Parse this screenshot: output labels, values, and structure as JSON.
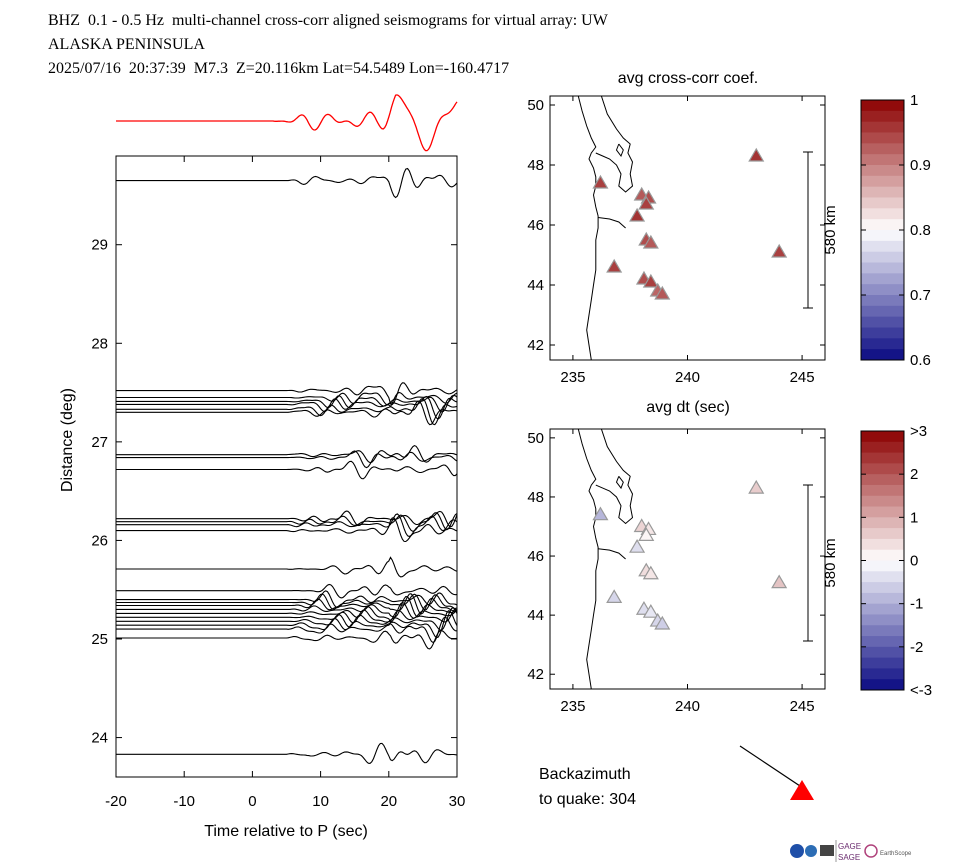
{
  "header": {
    "line1": "BHZ  0.1 - 0.5 Hz  multi-channel cross-corr aligned seismograms for virtual array: UW",
    "line2": "ALASKA PENINSULA",
    "line3": "2025/07/16  20:37:39  M7.3  Z=20.116km Lat=54.5489 Lon=-160.4717"
  },
  "chart_data": [
    {
      "type": "line",
      "id": "seismograms",
      "xlabel": "Time relative to P (sec)",
      "ylabel": "Distance (deg)",
      "xlim": [
        -20,
        30
      ],
      "ylim": [
        23.6,
        29.9
      ],
      "xticks": [
        "-20",
        "-10",
        "0",
        "10",
        "20",
        "30"
      ],
      "yticks": [
        "24",
        "25",
        "26",
        "27",
        "28",
        "29"
      ],
      "stack_color": "#ff0000",
      "trace_distances": [
        29.65,
        27.52,
        27.45,
        27.41,
        27.38,
        27.33,
        27.3,
        26.87,
        26.84,
        26.72,
        26.22,
        26.19,
        26.16,
        26.1,
        25.71,
        25.49,
        25.4,
        25.37,
        25.34,
        25.3,
        25.26,
        25.22,
        25.18,
        25.14,
        25.1,
        25.01,
        23.83
      ]
    },
    {
      "type": "scatter",
      "id": "map-coef",
      "title": "avg cross-corr coef.",
      "xlabel": "avg dt (sec)",
      "xlim": [
        234,
        246
      ],
      "ylim": [
        41.5,
        50.3
      ],
      "xticks": [
        "235",
        "240",
        "245"
      ],
      "yticks": [
        "42",
        "44",
        "46",
        "48",
        "50"
      ],
      "scale_label": "580 km",
      "colorbar": {
        "ticks": [
          "1",
          "0.9",
          "0.8",
          "0.7",
          "0.6"
        ]
      },
      "stations": [
        {
          "lon": 236.2,
          "lat": 47.4,
          "value": 0.95
        },
        {
          "lon": 243.0,
          "lat": 48.3,
          "value": 0.96
        },
        {
          "lon": 244.0,
          "lat": 45.1,
          "value": 0.95
        },
        {
          "lon": 238.0,
          "lat": 47.0,
          "value": 0.93
        },
        {
          "lon": 238.3,
          "lat": 46.9,
          "value": 0.94
        },
        {
          "lon": 238.2,
          "lat": 46.7,
          "value": 0.95
        },
        {
          "lon": 237.8,
          "lat": 46.3,
          "value": 0.96
        },
        {
          "lon": 238.2,
          "lat": 45.5,
          "value": 0.94
        },
        {
          "lon": 238.4,
          "lat": 45.4,
          "value": 0.93
        },
        {
          "lon": 236.8,
          "lat": 44.6,
          "value": 0.95
        },
        {
          "lon": 238.1,
          "lat": 44.2,
          "value": 0.94
        },
        {
          "lon": 238.4,
          "lat": 44.1,
          "value": 0.95
        },
        {
          "lon": 238.7,
          "lat": 43.8,
          "value": 0.92
        },
        {
          "lon": 238.9,
          "lat": 43.7,
          "value": 0.93
        }
      ]
    },
    {
      "type": "scatter",
      "id": "map-dt",
      "xlim": [
        234,
        246
      ],
      "ylim": [
        41.5,
        50.3
      ],
      "xticks": [
        "235",
        "240",
        "245"
      ],
      "yticks": [
        "42",
        "44",
        "46",
        "48",
        "50"
      ],
      "scale_label": "580 km",
      "colorbar": {
        "ticks": [
          ">3",
          "2",
          "1",
          "0",
          "-1",
          "-2",
          "<-3"
        ]
      },
      "stations": [
        {
          "lon": 236.2,
          "lat": 47.4,
          "value": -0.9
        },
        {
          "lon": 243.0,
          "lat": 48.3,
          "value": 0.6
        },
        {
          "lon": 244.0,
          "lat": 45.1,
          "value": 0.7
        },
        {
          "lon": 238.0,
          "lat": 47.0,
          "value": 0.5
        },
        {
          "lon": 238.3,
          "lat": 46.9,
          "value": 0.3
        },
        {
          "lon": 238.2,
          "lat": 46.7,
          "value": 0.1
        },
        {
          "lon": 237.8,
          "lat": 46.3,
          "value": -0.4
        },
        {
          "lon": 238.2,
          "lat": 45.5,
          "value": 0.4
        },
        {
          "lon": 238.4,
          "lat": 45.4,
          "value": 0.3
        },
        {
          "lon": 236.8,
          "lat": 44.6,
          "value": -0.5
        },
        {
          "lon": 238.1,
          "lat": 44.2,
          "value": -0.4
        },
        {
          "lon": 238.4,
          "lat": 44.1,
          "value": -0.3
        },
        {
          "lon": 238.7,
          "lat": 43.8,
          "value": -0.5
        },
        {
          "lon": 238.9,
          "lat": 43.7,
          "value": -0.6
        }
      ]
    }
  ],
  "backazimuth": {
    "label1": "Backazimuth",
    "label2": "to quake:  304",
    "value": 304
  },
  "logos": {
    "gage": "GAGE",
    "sage": "SAGE",
    "earthscope": "EarthScope"
  }
}
